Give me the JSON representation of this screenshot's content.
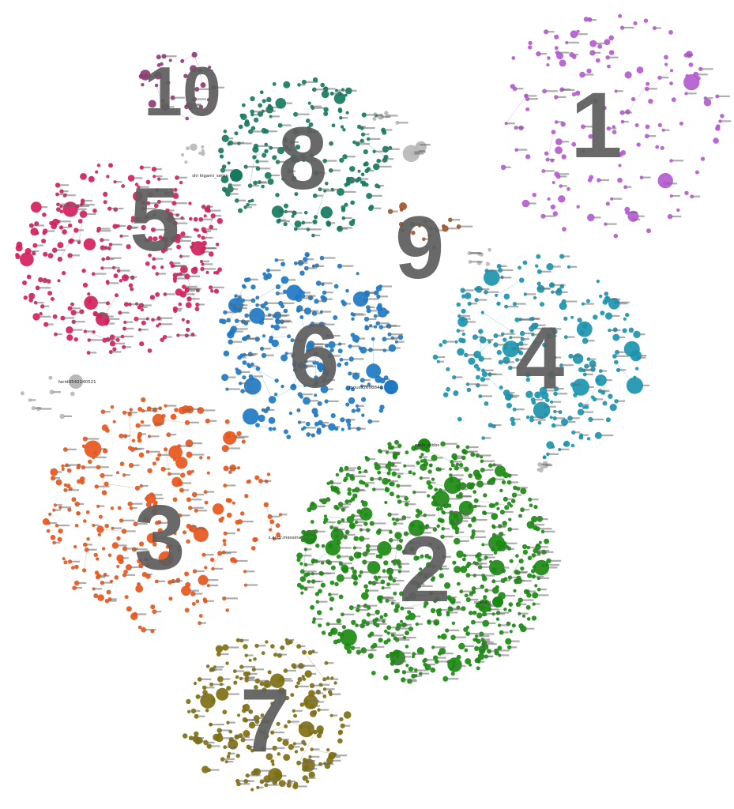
{
  "clusters": [
    {
      "id": "1",
      "label": "1",
      "color": "#b45bd0",
      "nodes": 160,
      "named_nodes": []
    },
    {
      "id": "2",
      "label": "2",
      "color": "#1b8a12",
      "nodes": 720,
      "named_nodes": [
        "sirana_i",
        "s.andr.messina",
        "carlo_Jobbs"
      ]
    },
    {
      "id": "3",
      "label": "3",
      "color": "#e7561c",
      "nodes": 300,
      "named_nodes": []
    },
    {
      "id": "4",
      "label": "4",
      "color": "#1b94ae",
      "nodes": 240,
      "named_nodes": []
    },
    {
      "id": "5",
      "label": "5",
      "color": "#d3205c",
      "nodes": 300,
      "named_nodes": []
    },
    {
      "id": "6",
      "label": "6",
      "color": "#1e78c2",
      "nodes": 280,
      "named_nodes": [
        "mouss2608842"
      ]
    },
    {
      "id": "7",
      "label": "7",
      "color": "#7f7013",
      "nodes": 230,
      "named_nodes": []
    },
    {
      "id": "8",
      "label": "8",
      "color": "#167a5e",
      "nodes": 210,
      "named_nodes": [
        "shi kigami_semn"
      ]
    },
    {
      "id": "9",
      "label": "9",
      "color": "#a4542a",
      "nodes": 18,
      "named_nodes": []
    },
    {
      "id": "10",
      "label": "10",
      "color": "#8e3c74",
      "nodes": 34,
      "named_nodes": []
    },
    {
      "id": "other",
      "label": "",
      "color": "#b8b8b8",
      "nodes": 45,
      "named_nodes": [
        "farid0542140521"
      ]
    }
  ]
}
